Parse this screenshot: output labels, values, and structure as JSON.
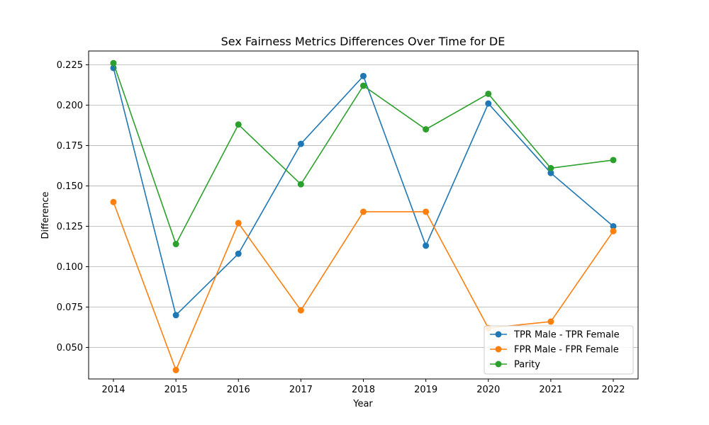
{
  "chart_data": {
    "type": "line",
    "title": "Sex Fairness Metrics Differences Over Time for DE",
    "xlabel": "Year",
    "ylabel": "Difference",
    "x": [
      "2014",
      "2015",
      "2016",
      "2017",
      "2018",
      "2019",
      "2020",
      "2021",
      "2022"
    ],
    "ylim": [
      0.0305,
      0.2335
    ],
    "yticks": [
      "0.050",
      "0.075",
      "0.100",
      "0.125",
      "0.150",
      "0.175",
      "0.200",
      "0.225"
    ],
    "grid": "horizontal",
    "legend_position": "bottom-right",
    "series": [
      {
        "name": "TPR Male - TPR Female",
        "color": "#1f77b4",
        "values": [
          0.223,
          0.07,
          0.108,
          0.176,
          0.218,
          0.113,
          0.201,
          0.158,
          0.125
        ]
      },
      {
        "name": "FPR Male - FPR Female",
        "color": "#ff7f0e",
        "values": [
          0.14,
          0.036,
          0.127,
          0.073,
          0.134,
          0.134,
          0.062,
          0.066,
          0.122
        ]
      },
      {
        "name": "Parity",
        "color": "#2ca02c",
        "values": [
          0.226,
          0.114,
          0.188,
          0.151,
          0.212,
          0.185,
          0.207,
          0.161,
          0.166
        ]
      }
    ]
  }
}
